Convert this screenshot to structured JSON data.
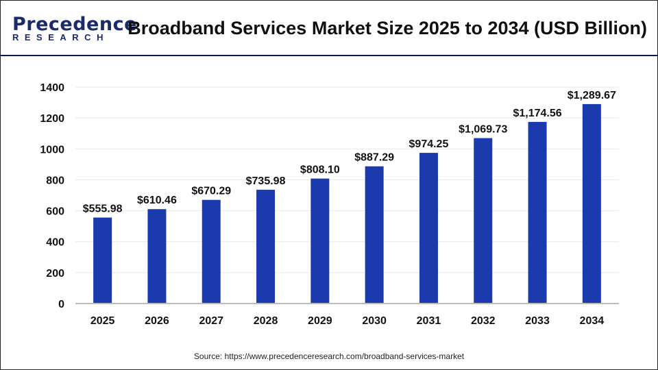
{
  "header": {
    "logo_line1": "Precedence",
    "logo_line2": "RESEARCH",
    "title": "Broadband Services Market Size 2025 to 2034 (USD Billion)"
  },
  "source": "Source: https://www.precedenceresearch.com/broadband-services-market",
  "colors": {
    "bar": "#1a3aad",
    "grid": "#e8e8e8",
    "axis": "#bbbbbb"
  },
  "chart_data": {
    "type": "bar",
    "title": "Broadband Services Market Size 2025 to 2034 (USD Billion)",
    "categories": [
      "2025",
      "2026",
      "2027",
      "2028",
      "2029",
      "2030",
      "2031",
      "2032",
      "2033",
      "2034"
    ],
    "values": [
      555.98,
      610.46,
      670.29,
      735.98,
      808.1,
      887.29,
      974.25,
      1069.73,
      1174.56,
      1289.67
    ],
    "data_labels": [
      "$555.98",
      "$610.46",
      "$670.29",
      "$735.98",
      "$808.10",
      "$887.29",
      "$974.25",
      "$1,069.73",
      "$1,174.56",
      "$1,289.67"
    ],
    "yticks": [
      "0",
      "200",
      "400",
      "600",
      "800",
      "1000",
      "1200",
      "1400"
    ],
    "ylim": [
      0,
      1400
    ],
    "grid": true,
    "xlabel": "",
    "ylabel": ""
  }
}
